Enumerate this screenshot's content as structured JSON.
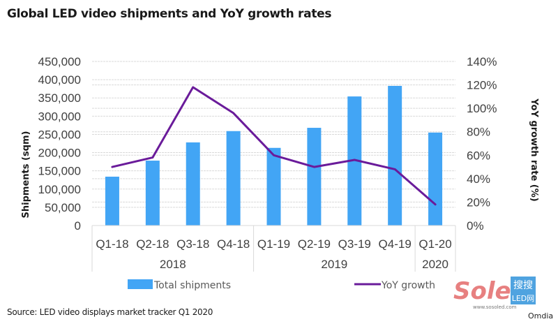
{
  "title": "Global LED video shipments and YoY growth rates",
  "source": "Source: LED video displays market tracker Q1 2020",
  "brand": "Omdia",
  "watermark": {
    "logo_text": "Soled",
    "cn_text": "搜搜",
    "led_text": "LED网",
    "url": "www.sosoled.com"
  },
  "colors": {
    "bar": "#42A5F5",
    "line": "#6A1B9A",
    "grid": "#D9D9D9",
    "axis": "#D9D9D9"
  },
  "chart_data": {
    "type": "bar+line",
    "title": "Global LED video shipments and YoY growth rates",
    "categories": [
      "Q1-18",
      "Q2-18",
      "Q3-18",
      "Q4-18",
      "Q1-19",
      "Q2-19",
      "Q3-19",
      "Q4-19",
      "Q1-20"
    ],
    "groups": [
      {
        "label": "2018",
        "count": 4
      },
      {
        "label": "2019",
        "count": 4
      },
      {
        "label": "2020",
        "count": 1
      }
    ],
    "series": [
      {
        "name": "Total shipments",
        "type": "bar",
        "axis": "left",
        "values": [
          134000,
          178000,
          228000,
          259000,
          213000,
          268000,
          354000,
          383000,
          255000
        ]
      },
      {
        "name": "YoY growth",
        "type": "line",
        "axis": "right",
        "values": [
          50,
          58,
          118,
          96,
          60,
          50,
          56,
          48,
          18
        ]
      }
    ],
    "y_left": {
      "label": "Shipments (sqm)",
      "ylim": [
        0,
        450000
      ],
      "ticks": [
        0,
        50000,
        100000,
        150000,
        200000,
        250000,
        300000,
        350000,
        400000,
        450000
      ],
      "tick_labels": [
        "0",
        "50,000",
        "100,000",
        "150,000",
        "200,000",
        "250,000",
        "300,000",
        "350,000",
        "400,000",
        "450,000"
      ]
    },
    "y_right": {
      "label": "YoY growth rate (%)",
      "ylim": [
        0,
        140
      ],
      "ticks": [
        0,
        20,
        40,
        60,
        80,
        100,
        120,
        140
      ],
      "tick_labels": [
        "0%",
        "20%",
        "40%",
        "60%",
        "80%",
        "100%",
        "120%",
        "140%"
      ]
    },
    "grid": true,
    "legend": {
      "position": "bottom",
      "entries": [
        "Total shipments",
        "YoY growth"
      ]
    }
  }
}
